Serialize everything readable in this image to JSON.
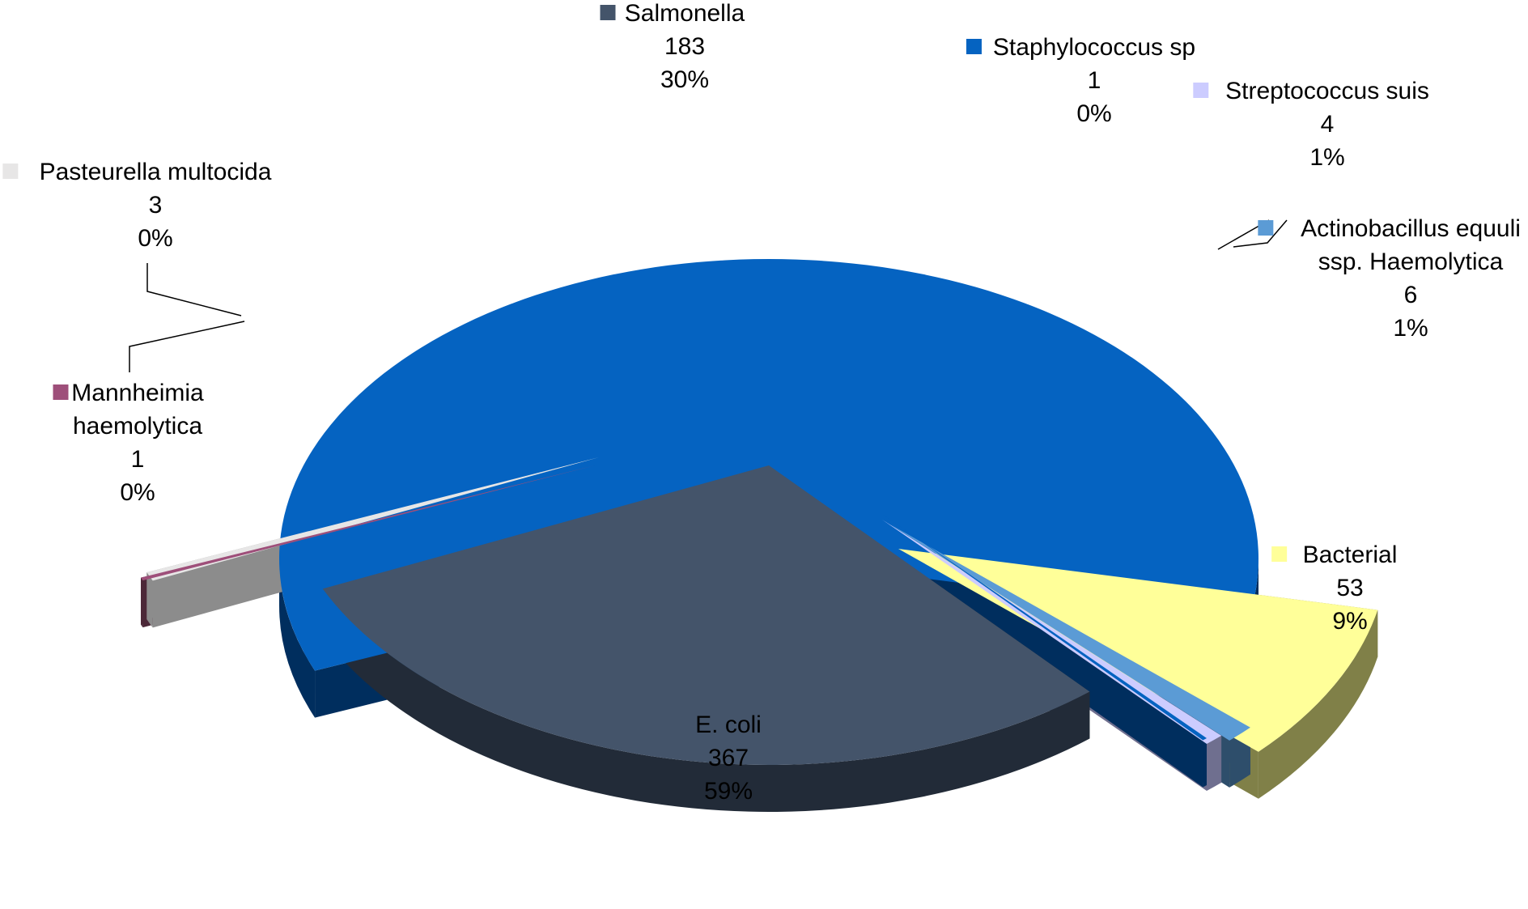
{
  "chart_data": {
    "type": "pie",
    "title": "",
    "style": "3d-exploded",
    "slices": [
      {
        "name": "E. coli",
        "value": 367,
        "percent": "59%",
        "color": "#0563C1",
        "side_color": "#002E5E"
      },
      {
        "name": "Bacterial",
        "value": 53,
        "percent": "9%",
        "color": "#FFFF99",
        "side_color": "#808048"
      },
      {
        "name": "Actinobacillus equuli ssp. Haemolytica",
        "value": 6,
        "percent": "1%",
        "color": "#5B9BD5",
        "side_color": "#2E4E6B"
      },
      {
        "name": "Streptococcus suis",
        "value": 4,
        "percent": "1%",
        "color": "#CCCCFF",
        "side_color": "#6F6F8F"
      },
      {
        "name": "Staphylococcus sp",
        "value": 1,
        "percent": "0%",
        "color": "#0563C1",
        "side_color": "#002E5E"
      },
      {
        "name": "Salmonella",
        "value": 183,
        "percent": "30%",
        "color": "#44546A",
        "side_color": "#222B38"
      },
      {
        "name": "Pasteurella multocida",
        "value": 3,
        "percent": "0%",
        "color": "#E7E6E6",
        "side_color": "#8C8C8C"
      },
      {
        "name": "Mannheimia haemolytica",
        "value": 1,
        "percent": "0%",
        "color": "#9E4F7A",
        "side_color": "#4C2838"
      }
    ]
  }
}
